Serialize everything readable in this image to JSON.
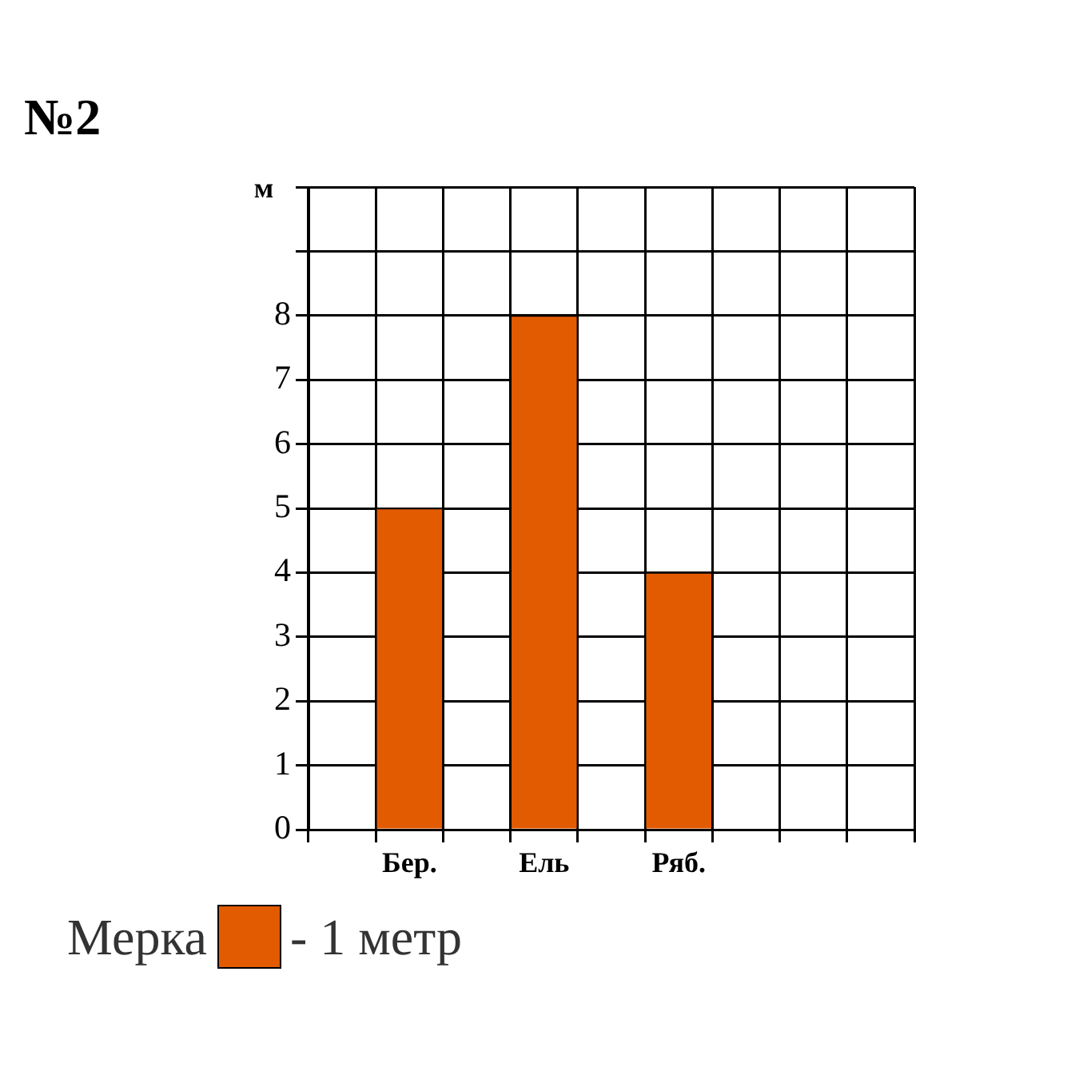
{
  "chart_data": {
    "type": "bar",
    "title": "№2",
    "ylabel": "м",
    "categories": [
      null,
      "Бер.",
      null,
      "Ель",
      null,
      "Ряб.",
      null,
      null,
      null
    ],
    "values": [
      null,
      5,
      null,
      8,
      null,
      4,
      null,
      null,
      null
    ],
    "color": "#e35b00",
    "ylim": [
      0,
      10
    ],
    "yticks": [
      0,
      1,
      2,
      3,
      4,
      5,
      6,
      7,
      8,
      {
        "value": 9,
        "label": null
      },
      {
        "value": 10,
        "label": null
      }
    ],
    "grid": true,
    "annotations": [
      "Мерка",
      "- 1 метр"
    ]
  }
}
